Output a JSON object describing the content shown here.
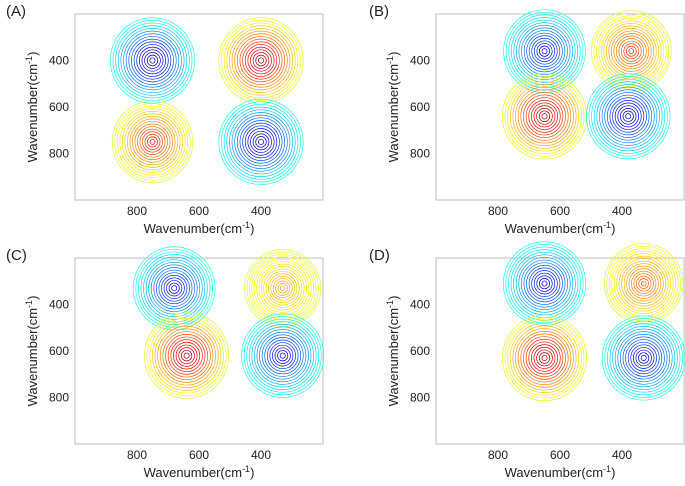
{
  "figure": {
    "panel_labels": [
      "(A)",
      "(B)",
      "(C)",
      "(D)"
    ],
    "xlabel": "Wavenumber(cm",
    "ylabel": "Wavenumber(cm",
    "label_exponent": "-1",
    "label_close": ")"
  },
  "chart_data": [
    {
      "type": "heatmap",
      "title": "(A)",
      "xlabel": "Wavenumber(cm-1)",
      "ylabel": "Wavenumber(cm-1)",
      "xlim": [
        1000,
        200
      ],
      "ylim": [
        200,
        1000
      ],
      "xticks": [
        800,
        600,
        400
      ],
      "yticks": [
        400,
        600,
        800
      ],
      "peaks": [
        {
          "x": 750,
          "y": 400,
          "sign": -1,
          "intensity": 1.0
        },
        {
          "x": 400,
          "y": 400,
          "sign": 1,
          "intensity": 1.0
        },
        {
          "x": 750,
          "y": 750,
          "sign": 1,
          "intensity": 0.7
        },
        {
          "x": 400,
          "y": 750,
          "sign": -1,
          "intensity": 1.0
        }
      ]
    },
    {
      "type": "heatmap",
      "title": "(B)",
      "xlabel": "Wavenumber(cm-1)",
      "ylabel": "Wavenumber(cm-1)",
      "xlim": [
        1000,
        200
      ],
      "ylim": [
        200,
        1000
      ],
      "xticks": [
        800,
        600,
        400
      ],
      "yticks": [
        400,
        600,
        800
      ],
      "peaks": [
        {
          "x": 650,
          "y": 360,
          "sign": -1,
          "intensity": 0.8
        },
        {
          "x": 370,
          "y": 360,
          "sign": 1,
          "intensity": 0.65
        },
        {
          "x": 650,
          "y": 640,
          "sign": 1,
          "intensity": 1.0
        },
        {
          "x": 380,
          "y": 640,
          "sign": -1,
          "intensity": 0.95
        }
      ]
    },
    {
      "type": "heatmap",
      "title": "(C)",
      "xlabel": "Wavenumber(cm-1)",
      "ylabel": "Wavenumber(cm-1)",
      "xlim": [
        1000,
        200
      ],
      "ylim": [
        200,
        1000
      ],
      "xticks": [
        800,
        600,
        400
      ],
      "yticks": [
        400,
        600,
        800
      ],
      "peaks": [
        {
          "x": 680,
          "y": 330,
          "sign": -1,
          "intensity": 0.8
        },
        {
          "x": 330,
          "y": 330,
          "sign": 1,
          "intensity": 0.35
        },
        {
          "x": 640,
          "y": 620,
          "sign": 1,
          "intensity": 1.0
        },
        {
          "x": 330,
          "y": 620,
          "sign": -1,
          "intensity": 0.85
        }
      ]
    },
    {
      "type": "heatmap",
      "title": "(D)",
      "xlabel": "Wavenumber(cm-1)",
      "ylabel": "Wavenumber(cm-1)",
      "xlim": [
        1000,
        200
      ],
      "ylim": [
        200,
        1000
      ],
      "xticks": [
        800,
        600,
        400
      ],
      "yticks": [
        400,
        600,
        800
      ],
      "peaks": [
        {
          "x": 650,
          "y": 310,
          "sign": -1,
          "intensity": 0.85
        },
        {
          "x": 330,
          "y": 310,
          "sign": 1,
          "intensity": 0.55
        },
        {
          "x": 650,
          "y": 630,
          "sign": 1,
          "intensity": 1.0
        },
        {
          "x": 330,
          "y": 630,
          "sign": -1,
          "intensity": 0.9
        }
      ]
    }
  ]
}
